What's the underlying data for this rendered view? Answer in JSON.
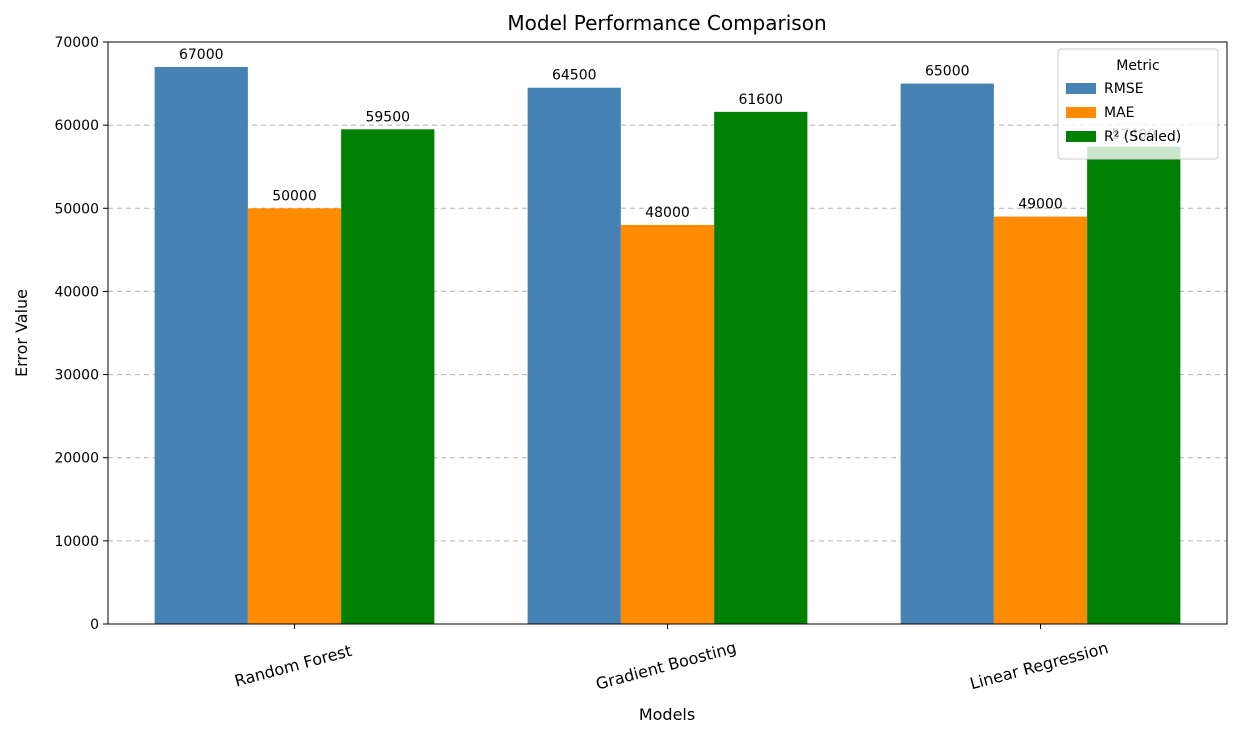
{
  "chart_data": {
    "type": "bar",
    "title": "Model Performance Comparison",
    "xlabel": "Models",
    "ylabel": "Error Value",
    "categories": [
      "Random Forest",
      "Gradient Boosting",
      "Linear Regression"
    ],
    "series": [
      {
        "name": "RMSE",
        "color": "#4682b4",
        "values": [
          67000,
          64500,
          65000
        ]
      },
      {
        "name": "MAE",
        "color": "#ff8c00",
        "values": [
          50000,
          48000,
          49000
        ]
      },
      {
        "name": "R² (Scaled)",
        "color": "#008000",
        "values": [
          59500,
          61600,
          57400
        ]
      }
    ],
    "ylim": [
      0,
      70000
    ],
    "yticks": [
      0,
      10000,
      20000,
      30000,
      40000,
      50000,
      60000,
      70000
    ],
    "grid": "y-dashed",
    "legend": {
      "title": "Metric",
      "placement": "top-right"
    }
  }
}
